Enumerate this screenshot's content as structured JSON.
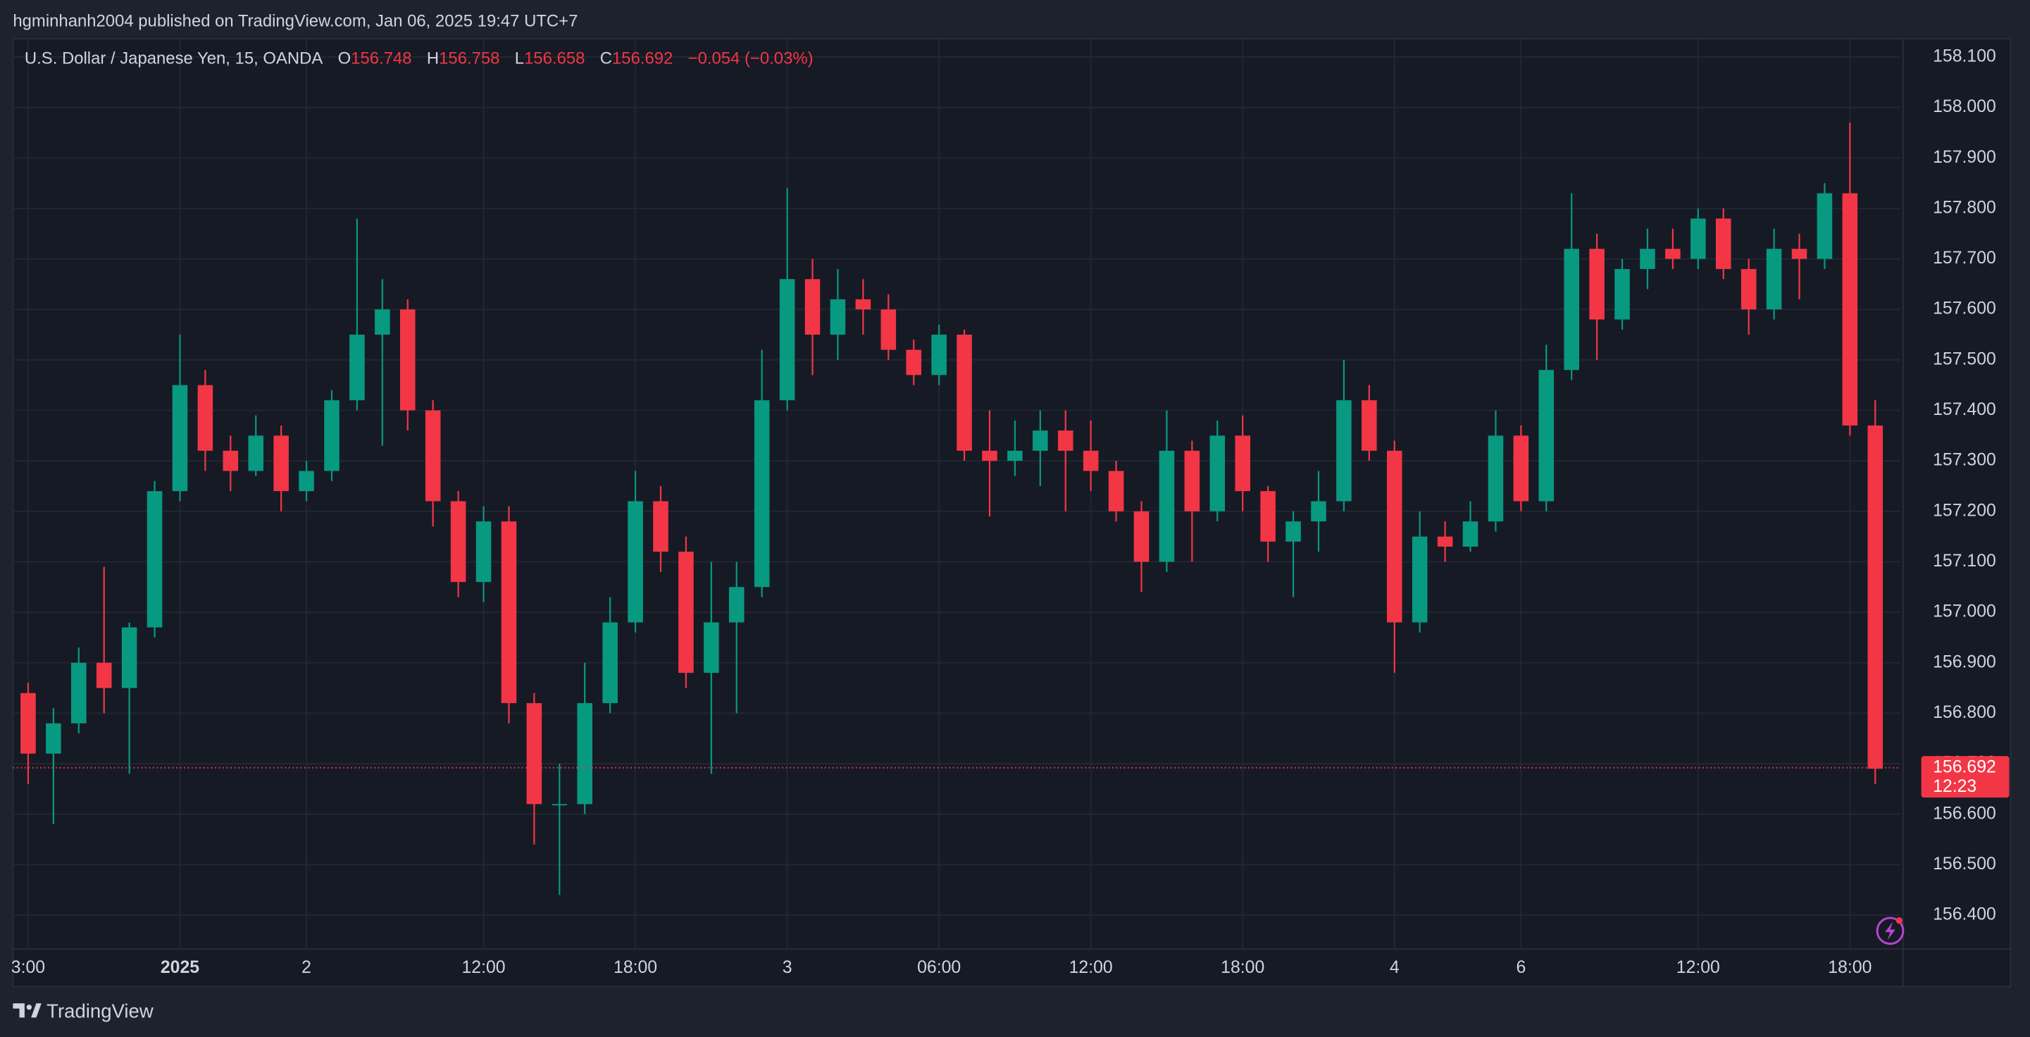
{
  "header": {
    "publisher": "hgminhanh2004 published on TradingView.com, Jan 06, 2025 19:47 UTC+7"
  },
  "footer": {
    "brand": "TradingView"
  },
  "chart_data": {
    "type": "candlestick",
    "title": "U.S. Dollar / Japanese Yen, 15, OANDA",
    "ohlc_labels": [
      "O",
      "H",
      "L",
      "C"
    ],
    "ohlc_values": [
      156.748,
      156.758,
      156.658,
      156.692
    ],
    "change": "−0.054 (−0.03%)",
    "last_price": 156.692,
    "countdown": "12:23",
    "up_color": "#089981",
    "down_color": "#f23645",
    "grid": true,
    "xlim": [
      -0.6,
      74
    ],
    "ylim": [
      156.333,
      158.136
    ],
    "xticks": [
      {
        "value": 0,
        "label": "3:00"
      },
      {
        "value": 6,
        "label": "2025"
      },
      {
        "value": 11,
        "label": "2"
      },
      {
        "value": 18,
        "label": "12:00"
      },
      {
        "value": 24,
        "label": "18:00"
      },
      {
        "value": 30,
        "label": "3"
      },
      {
        "value": 36,
        "label": "06:00"
      },
      {
        "value": 42,
        "label": "12:00"
      },
      {
        "value": 48,
        "label": "18:00"
      },
      {
        "value": 54,
        "label": "4"
      },
      {
        "value": 59,
        "label": "6"
      },
      {
        "value": 66,
        "label": "12:00"
      },
      {
        "value": 72,
        "label": "18:00"
      }
    ],
    "yticks": [
      {
        "value": 156.4,
        "label": "156.400"
      },
      {
        "value": 156.5,
        "label": "156.500"
      },
      {
        "value": 156.6,
        "label": "156.600"
      },
      {
        "value": 156.7,
        "label": "156.700"
      },
      {
        "value": 156.8,
        "label": "156.800"
      },
      {
        "value": 156.9,
        "label": "156.900"
      },
      {
        "value": 157.0,
        "label": "157.000"
      },
      {
        "value": 157.1,
        "label": "157.100"
      },
      {
        "value": 157.2,
        "label": "157.200"
      },
      {
        "value": 157.3,
        "label": "157.300"
      },
      {
        "value": 157.4,
        "label": "157.400"
      },
      {
        "value": 157.5,
        "label": "157.500"
      },
      {
        "value": 157.6,
        "label": "157.600"
      },
      {
        "value": 157.7,
        "label": "157.700"
      },
      {
        "value": 157.8,
        "label": "157.800"
      },
      {
        "value": 157.9,
        "label": "157.900"
      },
      {
        "value": 158.0,
        "label": "158.000"
      },
      {
        "value": 158.1,
        "label": "158.100"
      }
    ],
    "open": [
      156.84,
      156.72,
      156.78,
      156.9,
      156.85,
      156.97,
      157.24,
      157.45,
      157.32,
      157.28,
      157.35,
      157.24,
      157.28,
      157.42,
      157.55,
      157.6,
      157.4,
      157.22,
      157.06,
      157.18,
      156.82,
      156.62,
      156.62,
      156.82,
      156.98,
      157.22,
      157.12,
      156.88,
      156.98,
      157.05,
      157.42,
      157.66,
      157.55,
      157.62,
      157.6,
      157.52,
      157.47,
      157.55,
      157.32,
      157.3,
      157.32,
      157.36,
      157.32,
      157.28,
      157.2,
      157.1,
      157.32,
      157.2,
      157.35,
      157.24,
      157.14,
      157.18,
      157.22,
      157.42,
      157.32,
      156.98,
      157.15,
      157.13,
      157.18,
      157.35,
      157.22,
      157.48,
      157.72,
      157.58,
      157.68,
      157.72,
      157.7,
      157.78,
      157.68,
      157.6,
      157.72,
      157.7,
      157.83,
      157.37
    ],
    "high": [
      156.86,
      156.81,
      156.93,
      157.09,
      156.98,
      157.26,
      157.55,
      157.48,
      157.35,
      157.39,
      157.37,
      157.3,
      157.44,
      157.78,
      157.66,
      157.62,
      157.42,
      157.24,
      157.21,
      157.21,
      156.84,
      156.7,
      156.9,
      157.03,
      157.28,
      157.25,
      157.15,
      157.1,
      157.1,
      157.52,
      157.84,
      157.7,
      157.68,
      157.66,
      157.63,
      157.54,
      157.57,
      157.56,
      157.4,
      157.38,
      157.4,
      157.4,
      157.38,
      157.3,
      157.22,
      157.4,
      157.34,
      157.38,
      157.39,
      157.25,
      157.2,
      157.28,
      157.5,
      157.45,
      157.34,
      157.2,
      157.18,
      157.22,
      157.4,
      157.37,
      157.53,
      157.83,
      157.75,
      157.7,
      157.76,
      157.76,
      157.8,
      157.8,
      157.7,
      157.76,
      157.75,
      157.85,
      157.97,
      157.42
    ],
    "low": [
      156.66,
      156.58,
      156.76,
      156.8,
      156.68,
      156.95,
      157.22,
      157.28,
      157.24,
      157.27,
      157.2,
      157.22,
      157.26,
      157.4,
      157.33,
      157.36,
      157.17,
      157.03,
      157.02,
      156.78,
      156.54,
      156.44,
      156.6,
      156.8,
      156.96,
      157.08,
      156.85,
      156.68,
      156.8,
      157.03,
      157.4,
      157.47,
      157.5,
      157.55,
      157.5,
      157.45,
      157.45,
      157.3,
      157.19,
      157.27,
      157.25,
      157.2,
      157.24,
      157.18,
      157.04,
      157.08,
      157.1,
      157.18,
      157.2,
      157.1,
      157.03,
      157.12,
      157.2,
      157.3,
      156.88,
      156.96,
      157.1,
      157.12,
      157.16,
      157.2,
      157.2,
      157.46,
      157.5,
      157.56,
      157.64,
      157.68,
      157.68,
      157.66,
      157.55,
      157.58,
      157.62,
      157.68,
      157.35,
      156.66
    ],
    "close": [
      156.72,
      156.78,
      156.9,
      156.85,
      156.97,
      157.24,
      157.45,
      157.32,
      157.28,
      157.35,
      157.24,
      157.28,
      157.42,
      157.55,
      157.6,
      157.4,
      157.22,
      157.06,
      157.18,
      156.82,
      156.62,
      156.62,
      156.82,
      156.98,
      157.22,
      157.12,
      156.88,
      156.98,
      157.05,
      157.42,
      157.66,
      157.55,
      157.62,
      157.6,
      157.52,
      157.47,
      157.55,
      157.32,
      157.3,
      157.32,
      157.36,
      157.32,
      157.28,
      157.2,
      157.1,
      157.32,
      157.2,
      157.35,
      157.24,
      157.14,
      157.18,
      157.22,
      157.42,
      157.32,
      156.98,
      157.15,
      157.13,
      157.18,
      157.35,
      157.22,
      157.48,
      157.72,
      157.58,
      157.68,
      157.72,
      157.7,
      157.78,
      157.68,
      157.6,
      157.72,
      157.7,
      157.83,
      157.37,
      156.69
    ]
  }
}
